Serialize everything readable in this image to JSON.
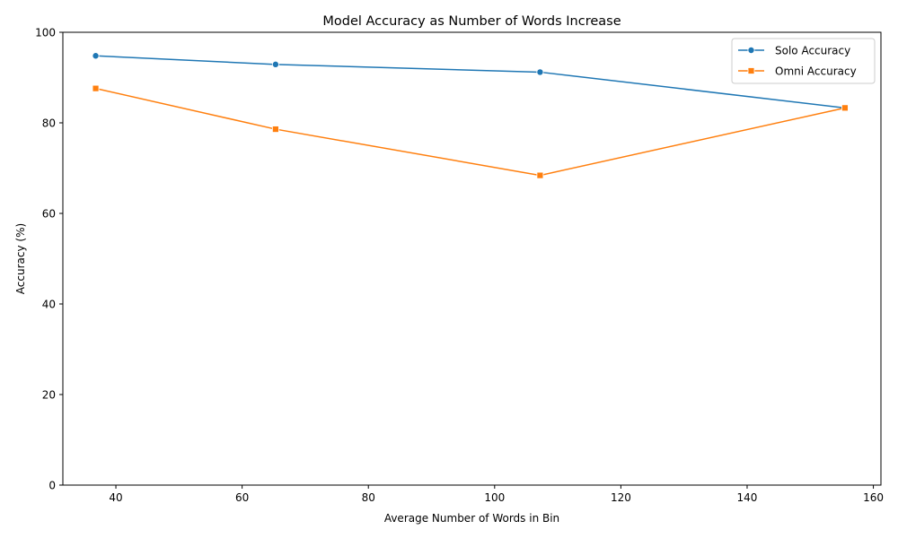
{
  "chart_data": {
    "type": "line",
    "title": "Model Accuracy as Number of Words Increase",
    "xlabel": "Average Number of Words in Bin",
    "ylabel": "Accuracy (%)",
    "xlim": [
      31.6,
      161.2
    ],
    "ylim": [
      0,
      100
    ],
    "xticks": [
      40,
      60,
      80,
      100,
      120,
      140,
      160
    ],
    "yticks": [
      0,
      20,
      40,
      60,
      80,
      100
    ],
    "grid": false,
    "legend_position": "top-right",
    "series": [
      {
        "name": "Solo Accuracy",
        "color": "#1f77b4",
        "marker": "circle",
        "x": [
          36.8,
          65.3,
          107.2,
          155.5
        ],
        "y": [
          94.8,
          92.9,
          91.2,
          83.3
        ]
      },
      {
        "name": "Omni Accuracy",
        "color": "#ff7f0e",
        "marker": "square",
        "x": [
          36.8,
          65.3,
          107.2,
          155.5
        ],
        "y": [
          87.6,
          78.6,
          68.4,
          83.3
        ]
      }
    ]
  }
}
